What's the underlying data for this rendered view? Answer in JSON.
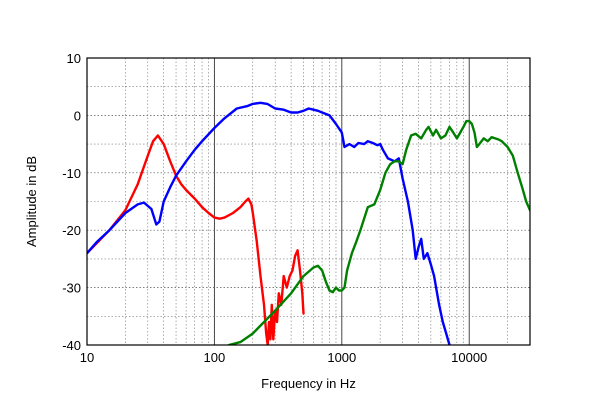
{
  "chart_data": {
    "type": "line",
    "xlabel": "Frequency in Hz",
    "ylabel": "Amplitude in dB",
    "xscale": "log",
    "xlim": [
      10,
      30000
    ],
    "ylim": [
      -40,
      10
    ],
    "grid": true,
    "x_ticks": [
      10,
      100,
      1000,
      10000
    ],
    "x_tick_labels": [
      "10",
      "100",
      "1000",
      "10000"
    ],
    "y_ticks": [
      10,
      0,
      -10,
      -20,
      -30,
      -40
    ],
    "y_tick_labels": [
      "10",
      "0",
      "-10",
      "-20",
      "-30",
      "-40"
    ],
    "series": [
      {
        "color": "#ff0000",
        "points": [
          [
            10,
            -24
          ],
          [
            15,
            -20
          ],
          [
            20,
            -16.5
          ],
          [
            25,
            -12
          ],
          [
            30,
            -7
          ],
          [
            33,
            -4.5
          ],
          [
            36,
            -3.5
          ],
          [
            40,
            -5
          ],
          [
            45,
            -8
          ],
          [
            50,
            -10.5
          ],
          [
            55,
            -12
          ],
          [
            60,
            -13
          ],
          [
            70,
            -14.5
          ],
          [
            80,
            -16
          ],
          [
            90,
            -17
          ],
          [
            100,
            -17.8
          ],
          [
            110,
            -18
          ],
          [
            120,
            -17.8
          ],
          [
            140,
            -17
          ],
          [
            160,
            -16
          ],
          [
            175,
            -15
          ],
          [
            185,
            -14.5
          ],
          [
            195,
            -15.5
          ],
          [
            200,
            -17
          ],
          [
            215,
            -22
          ],
          [
            230,
            -28
          ],
          [
            245,
            -33
          ],
          [
            255,
            -38
          ],
          [
            262,
            -40
          ],
          [
            268,
            -36
          ],
          [
            275,
            -39
          ],
          [
            282,
            -33
          ],
          [
            290,
            -39
          ],
          [
            300,
            -34
          ],
          [
            310,
            -36
          ],
          [
            320,
            -31
          ],
          [
            335,
            -33
          ],
          [
            350,
            -28
          ],
          [
            370,
            -30
          ],
          [
            390,
            -28
          ],
          [
            410,
            -27
          ],
          [
            430,
            -24.5
          ],
          [
            450,
            -23.5
          ],
          [
            470,
            -27
          ],
          [
            490,
            -31
          ],
          [
            500,
            -34.5
          ]
        ]
      },
      {
        "color": "#0000ff",
        "points": [
          [
            10,
            -24
          ],
          [
            12,
            -22
          ],
          [
            15,
            -20
          ],
          [
            20,
            -17
          ],
          [
            25,
            -15.5
          ],
          [
            28,
            -15.2
          ],
          [
            32,
            -16.3
          ],
          [
            35,
            -19
          ],
          [
            37,
            -18.5
          ],
          [
            40,
            -15
          ],
          [
            45,
            -12.5
          ],
          [
            50,
            -10.5
          ],
          [
            60,
            -8
          ],
          [
            70,
            -6
          ],
          [
            80,
            -4.5
          ],
          [
            100,
            -2.2
          ],
          [
            120,
            -0.5
          ],
          [
            150,
            1.2
          ],
          [
            180,
            1.6
          ],
          [
            200,
            2
          ],
          [
            230,
            2.2
          ],
          [
            260,
            2
          ],
          [
            300,
            1.2
          ],
          [
            350,
            1
          ],
          [
            400,
            0.5
          ],
          [
            450,
            0.5
          ],
          [
            500,
            0.8
          ],
          [
            550,
            1.2
          ],
          [
            600,
            1
          ],
          [
            650,
            0.8
          ],
          [
            700,
            0.5
          ],
          [
            800,
            0
          ],
          [
            900,
            -1.5
          ],
          [
            1000,
            -3
          ],
          [
            1050,
            -5.5
          ],
          [
            1150,
            -5
          ],
          [
            1250,
            -5.5
          ],
          [
            1350,
            -4.8
          ],
          [
            1500,
            -5
          ],
          [
            1600,
            -4.5
          ],
          [
            1750,
            -4.8
          ],
          [
            1900,
            -5.2
          ],
          [
            2000,
            -5
          ],
          [
            2100,
            -6
          ],
          [
            2300,
            -7.5
          ],
          [
            2600,
            -8
          ],
          [
            2800,
            -7.5
          ],
          [
            3000,
            -11
          ],
          [
            3300,
            -15
          ],
          [
            3600,
            -20
          ],
          [
            3800,
            -25
          ],
          [
            4000,
            -23
          ],
          [
            4200,
            -21.5
          ],
          [
            4400,
            -25
          ],
          [
            4700,
            -24
          ],
          [
            5000,
            -26
          ],
          [
            5300,
            -28
          ],
          [
            5500,
            -30
          ],
          [
            5800,
            -33
          ],
          [
            6200,
            -36
          ],
          [
            6600,
            -38
          ],
          [
            7000,
            -40
          ]
        ]
      },
      {
        "color": "#008000",
        "points": [
          [
            130,
            -40
          ],
          [
            160,
            -39.5
          ],
          [
            200,
            -38
          ],
          [
            300,
            -34
          ],
          [
            400,
            -31
          ],
          [
            500,
            -28
          ],
          [
            600,
            -26.5
          ],
          [
            650,
            -26.2
          ],
          [
            700,
            -27
          ],
          [
            750,
            -29
          ],
          [
            800,
            -30.5
          ],
          [
            850,
            -30.8
          ],
          [
            900,
            -30
          ],
          [
            950,
            -30.5
          ],
          [
            1000,
            -30.5
          ],
          [
            1050,
            -30
          ],
          [
            1100,
            -27
          ],
          [
            1200,
            -24
          ],
          [
            1300,
            -22
          ],
          [
            1400,
            -20
          ],
          [
            1600,
            -16
          ],
          [
            1800,
            -15.5
          ],
          [
            2000,
            -13
          ],
          [
            2200,
            -10
          ],
          [
            2400,
            -8.5
          ],
          [
            2600,
            -8
          ],
          [
            2800,
            -8
          ],
          [
            3000,
            -8.5
          ],
          [
            3200,
            -6
          ],
          [
            3500,
            -3.5
          ],
          [
            3800,
            -3.2
          ],
          [
            4200,
            -4
          ],
          [
            4600,
            -2.5
          ],
          [
            4800,
            -2
          ],
          [
            5200,
            -3.5
          ],
          [
            5500,
            -2.5
          ],
          [
            6000,
            -4
          ],
          [
            6500,
            -3.5
          ],
          [
            7000,
            -2
          ],
          [
            7500,
            -3
          ],
          [
            8000,
            -4
          ],
          [
            8500,
            -3
          ],
          [
            9000,
            -2
          ],
          [
            9500,
            -1
          ],
          [
            10000,
            -1
          ],
          [
            10500,
            -1.5
          ],
          [
            11000,
            -3
          ],
          [
            11500,
            -5.5
          ],
          [
            12000,
            -5
          ],
          [
            13000,
            -4
          ],
          [
            14000,
            -4.5
          ],
          [
            15000,
            -3.8
          ],
          [
            16000,
            -4
          ],
          [
            17000,
            -4.2
          ],
          [
            18000,
            -4.5
          ],
          [
            20000,
            -5.5
          ],
          [
            22000,
            -7
          ],
          [
            24000,
            -10
          ],
          [
            26000,
            -12.5
          ],
          [
            28000,
            -15
          ],
          [
            30000,
            -16.5
          ]
        ]
      }
    ]
  }
}
